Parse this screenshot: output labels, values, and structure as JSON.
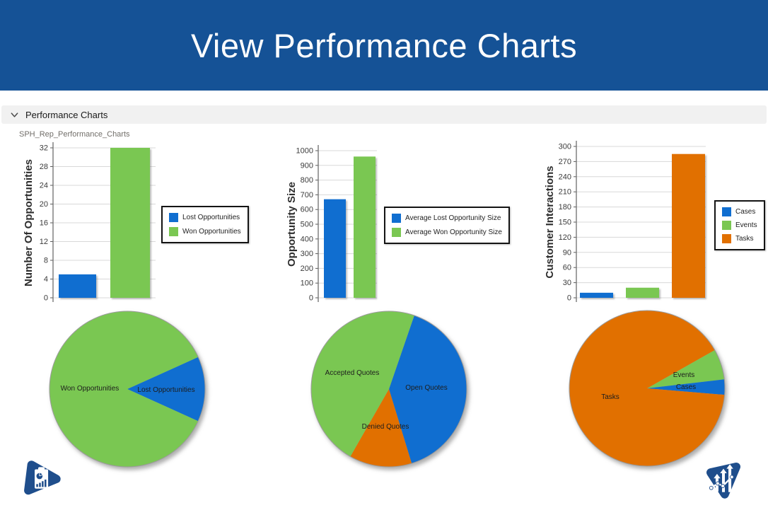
{
  "header": {
    "title": "View Performance Charts",
    "background": "#155296"
  },
  "section": {
    "label": "Performance Charts",
    "chevron_icon": "chevron-down"
  },
  "report_name": "SPH_Rep_Performance_Charts",
  "colors": {
    "blue": "#106ED0",
    "green": "#7AC752",
    "orange": "#E17000",
    "logo_navy": "#1F4E8C"
  },
  "icons": {
    "bottom_left": "report-clipboard-logo",
    "bottom_right": "growth-arrows-logo"
  },
  "chart_data": [
    {
      "id": "opportunities-bar",
      "type": "bar",
      "ylabel": "Number Of Opportunities",
      "xlabel": "",
      "title": "",
      "ylim": [
        0,
        32
      ],
      "ytick_step": 4,
      "grid": true,
      "legend_position": "right",
      "series": [
        {
          "name": "Lost Opportunities",
          "value": 5,
          "color": "#106ED0"
        },
        {
          "name": "Won Opportunities",
          "value": 32,
          "color": "#7AC752"
        }
      ]
    },
    {
      "id": "opportunity-size-bar",
      "type": "bar",
      "ylabel": "Opportunity Size",
      "xlabel": "",
      "title": "",
      "ylim": [
        0,
        1000
      ],
      "ytick_step": 100,
      "grid": true,
      "legend_position": "right",
      "series": [
        {
          "name": "Average Lost Opportunity Size",
          "value": 670,
          "color": "#106ED0"
        },
        {
          "name": "Average Won Opportunity Size",
          "value": 960,
          "color": "#7AC752"
        }
      ]
    },
    {
      "id": "customer-interactions-bar",
      "type": "bar",
      "ylabel": "Customer Interactions",
      "xlabel": "",
      "title": "",
      "ylim": [
        0,
        300
      ],
      "ytick_step": 30,
      "grid": true,
      "legend_position": "right",
      "series": [
        {
          "name": "Cases",
          "value": 10,
          "color": "#106ED0"
        },
        {
          "name": "Events",
          "value": 20,
          "color": "#7AC752"
        },
        {
          "name": "Tasks",
          "value": 285,
          "color": "#E17000"
        }
      ]
    },
    {
      "id": "opportunities-pie",
      "type": "pie",
      "slices": [
        {
          "label": "Lost Opportunities",
          "value": 5,
          "color": "#106ED0"
        },
        {
          "label": "Won Opportunities",
          "value": 32,
          "color": "#7AC752"
        }
      ]
    },
    {
      "id": "quotes-pie",
      "type": "pie",
      "slices": [
        {
          "label": "Open Quotes",
          "value": 40,
          "color": "#106ED0"
        },
        {
          "label": "Denied Quotes",
          "value": 13,
          "color": "#E17000"
        },
        {
          "label": "Accepted Quotes",
          "value": 47,
          "color": "#7AC752"
        }
      ]
    },
    {
      "id": "interactions-pie",
      "type": "pie",
      "slices": [
        {
          "label": "Events",
          "value": 20,
          "color": "#7AC752"
        },
        {
          "label": "Cases",
          "value": 10,
          "color": "#106ED0"
        },
        {
          "label": "Tasks",
          "value": 285,
          "color": "#E17000"
        }
      ]
    }
  ]
}
